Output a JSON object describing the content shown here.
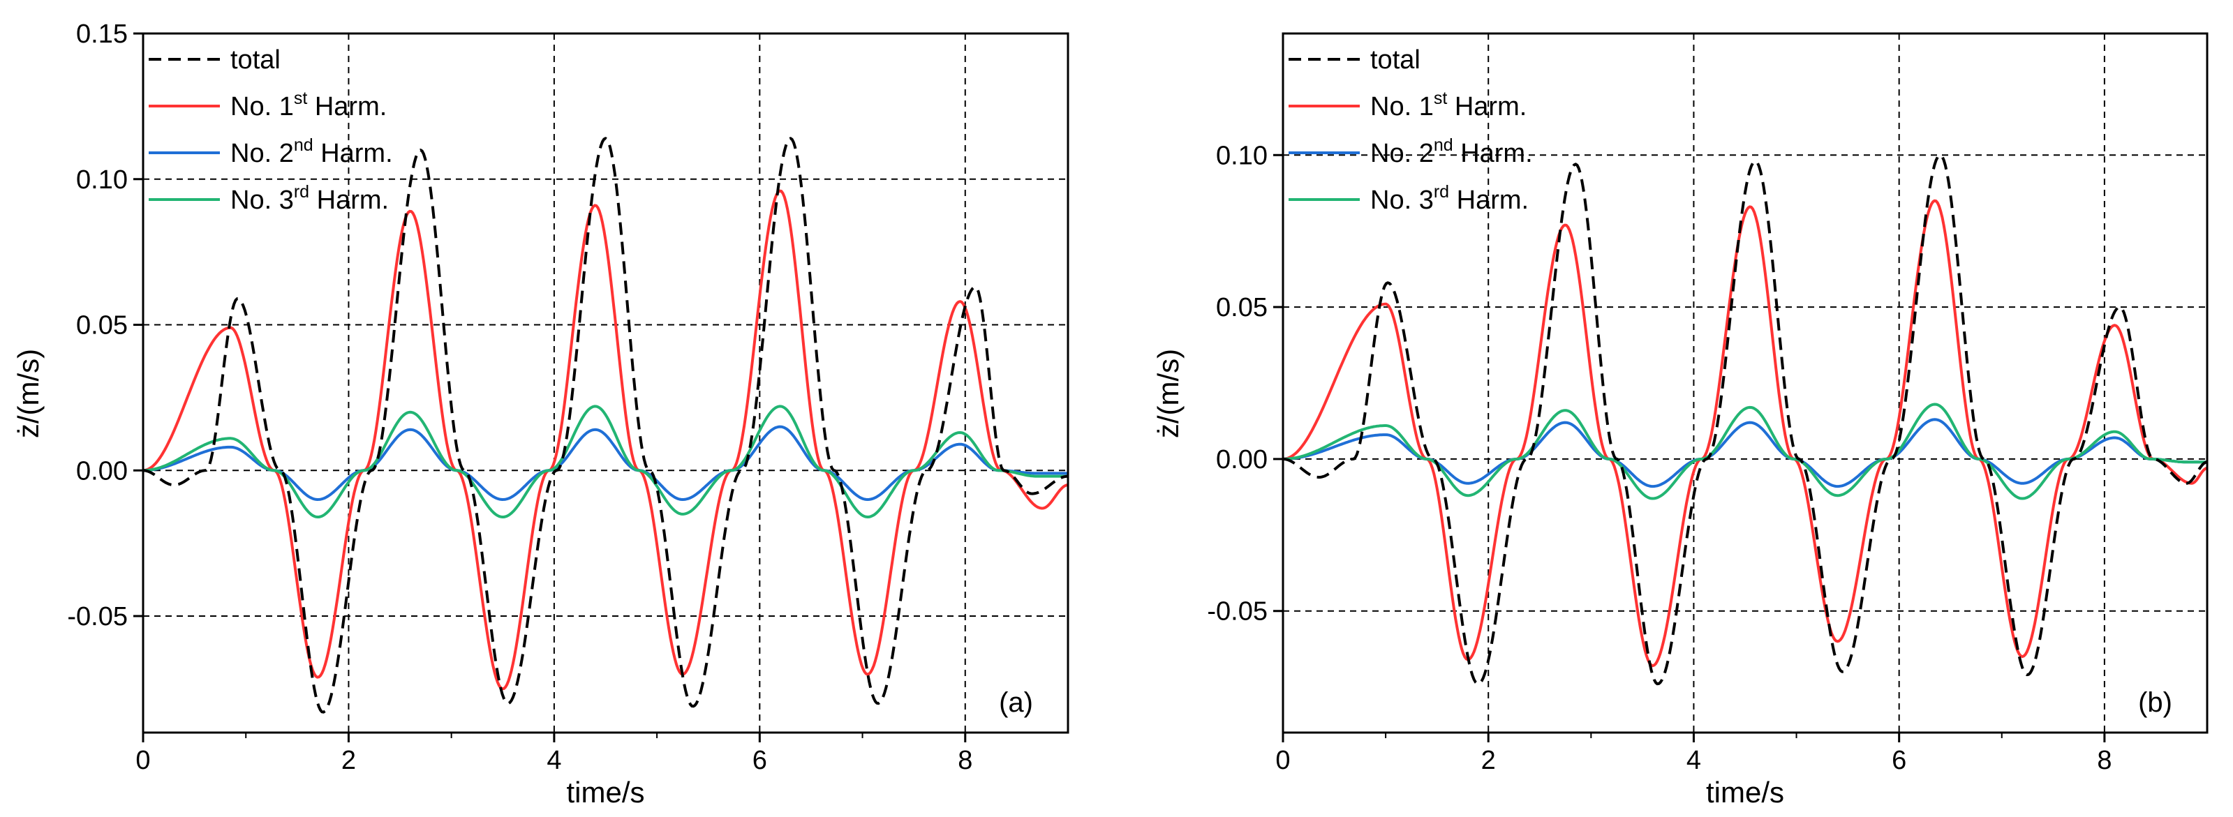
{
  "chart_data": [
    {
      "type": "line",
      "panel_label": "(a)",
      "xlabel": "time/s",
      "ylabel": "ż/(m/s)",
      "xlim": [
        0,
        9
      ],
      "ylim": [
        -0.09,
        0.15
      ],
      "xticks": [
        0,
        2,
        4,
        6,
        8
      ],
      "xtick_labels": [
        "0",
        "2",
        "4",
        "6",
        "8"
      ],
      "yticks": [
        -0.05,
        0.0,
        0.05,
        0.1,
        0.15
      ],
      "ytick_labels": [
        "-0.05",
        "0.00",
        "0.05",
        "0.10",
        "0.15"
      ],
      "grid": true,
      "legend_position": "top-left",
      "series": [
        {
          "name": "total",
          "legend_main": "total",
          "legend_sup": "",
          "legend_tail": "",
          "color": "#000000",
          "style": "dashed",
          "peaks": [
            [
              0.3,
              -0.005
            ],
            [
              0.92,
              0.059
            ],
            [
              1.75,
              -0.083
            ],
            [
              2.7,
              0.11
            ],
            [
              3.55,
              -0.08
            ],
            [
              4.5,
              0.114
            ],
            [
              5.35,
              -0.081
            ],
            [
              6.3,
              0.114
            ],
            [
              7.15,
              -0.08
            ],
            [
              8.1,
              0.063
            ],
            [
              8.65,
              -0.008
            ],
            [
              9.0,
              -0.002
            ]
          ]
        },
        {
          "name": "No. 1st Harm.",
          "legend_main": "No. 1",
          "legend_sup": "st",
          "legend_tail": " Harm.",
          "color": "#ff3333",
          "style": "solid",
          "peaks": [
            [
              0.85,
              0.049
            ],
            [
              1.7,
              -0.071
            ],
            [
              2.6,
              0.089
            ],
            [
              3.5,
              -0.075
            ],
            [
              4.4,
              0.091
            ],
            [
              5.25,
              -0.07
            ],
            [
              6.2,
              0.096
            ],
            [
              7.05,
              -0.07
            ],
            [
              7.95,
              0.058
            ],
            [
              8.75,
              -0.013
            ],
            [
              9.0,
              -0.005
            ]
          ]
        },
        {
          "name": "No. 2nd Harm.",
          "legend_main": "No. 2",
          "legend_sup": "nd",
          "legend_tail": " Harm.",
          "color": "#1f6fd6",
          "style": "solid",
          "peaks": [
            [
              0.85,
              0.008
            ],
            [
              1.7,
              -0.01
            ],
            [
              2.6,
              0.014
            ],
            [
              3.5,
              -0.01
            ],
            [
              4.4,
              0.014
            ],
            [
              5.25,
              -0.01
            ],
            [
              6.2,
              0.015
            ],
            [
              7.05,
              -0.01
            ],
            [
              7.95,
              0.009
            ],
            [
              8.7,
              -0.001
            ]
          ]
        },
        {
          "name": "No. 3rd Harm.",
          "legend_main": "No. 3",
          "legend_sup": "rd",
          "legend_tail": " Harm.",
          "color": "#22b573",
          "style": "solid",
          "peaks": [
            [
              0.85,
              0.011
            ],
            [
              1.7,
              -0.016
            ],
            [
              2.6,
              0.02
            ],
            [
              3.5,
              -0.016
            ],
            [
              4.4,
              0.022
            ],
            [
              5.25,
              -0.015
            ],
            [
              6.2,
              0.022
            ],
            [
              7.05,
              -0.016
            ],
            [
              7.95,
              0.013
            ],
            [
              8.7,
              -0.002
            ]
          ]
        }
      ]
    },
    {
      "type": "line",
      "panel_label": "(b)",
      "xlabel": "time/s",
      "ylabel": "ż/(m/s)",
      "xlim": [
        0,
        9
      ],
      "ylim": [
        -0.09,
        0.14
      ],
      "xticks": [
        0,
        2,
        4,
        6,
        8
      ],
      "xtick_labels": [
        "0",
        "2",
        "4",
        "6",
        "8"
      ],
      "yticks": [
        -0.05,
        0.0,
        0.05,
        0.1
      ],
      "ytick_labels": [
        "-0.05",
        "0.00",
        "0.05",
        "0.10"
      ],
      "grid": true,
      "legend_position": "top-left",
      "series": [
        {
          "name": "total",
          "legend_main": "total",
          "legend_sup": "",
          "legend_tail": "",
          "color": "#000000",
          "style": "dashed",
          "peaks": [
            [
              0.35,
              -0.006
            ],
            [
              1.02,
              0.058
            ],
            [
              1.9,
              -0.074
            ],
            [
              2.85,
              0.097
            ],
            [
              3.65,
              -0.074
            ],
            [
              4.6,
              0.098
            ],
            [
              5.45,
              -0.07
            ],
            [
              6.4,
              0.1
            ],
            [
              7.25,
              -0.071
            ],
            [
              8.15,
              0.05
            ],
            [
              8.8,
              -0.008
            ],
            [
              9.0,
              -0.001
            ]
          ]
        },
        {
          "name": "No. 1st Harm.",
          "legend_main": "No. 1",
          "legend_sup": "st",
          "legend_tail": " Harm.",
          "color": "#ff3333",
          "style": "solid",
          "peaks": [
            [
              1.0,
              0.051
            ],
            [
              1.8,
              -0.066
            ],
            [
              2.75,
              0.077
            ],
            [
              3.6,
              -0.068
            ],
            [
              4.55,
              0.083
            ],
            [
              5.4,
              -0.06
            ],
            [
              6.35,
              0.085
            ],
            [
              7.2,
              -0.065
            ],
            [
              8.1,
              0.044
            ],
            [
              8.85,
              -0.008
            ],
            [
              9.0,
              -0.003
            ]
          ]
        },
        {
          "name": "No. 2nd Harm.",
          "legend_main": "No. 2",
          "legend_sup": "nd",
          "legend_tail": " Harm.",
          "color": "#1f6fd6",
          "style": "solid",
          "peaks": [
            [
              1.0,
              0.008
            ],
            [
              1.8,
              -0.008
            ],
            [
              2.75,
              0.012
            ],
            [
              3.6,
              -0.009
            ],
            [
              4.55,
              0.012
            ],
            [
              5.4,
              -0.009
            ],
            [
              6.35,
              0.013
            ],
            [
              7.2,
              -0.008
            ],
            [
              8.1,
              0.007
            ],
            [
              8.8,
              -0.001
            ]
          ]
        },
        {
          "name": "No. 3rd Harm.",
          "legend_main": "No. 3",
          "legend_sup": "rd",
          "legend_tail": " Harm.",
          "color": "#22b573",
          "style": "solid",
          "peaks": [
            [
              1.0,
              0.011
            ],
            [
              1.8,
              -0.012
            ],
            [
              2.75,
              0.016
            ],
            [
              3.6,
              -0.013
            ],
            [
              4.55,
              0.017
            ],
            [
              5.4,
              -0.012
            ],
            [
              6.35,
              0.018
            ],
            [
              7.2,
              -0.013
            ],
            [
              8.1,
              0.009
            ],
            [
              8.8,
              -0.001
            ]
          ]
        }
      ]
    }
  ]
}
